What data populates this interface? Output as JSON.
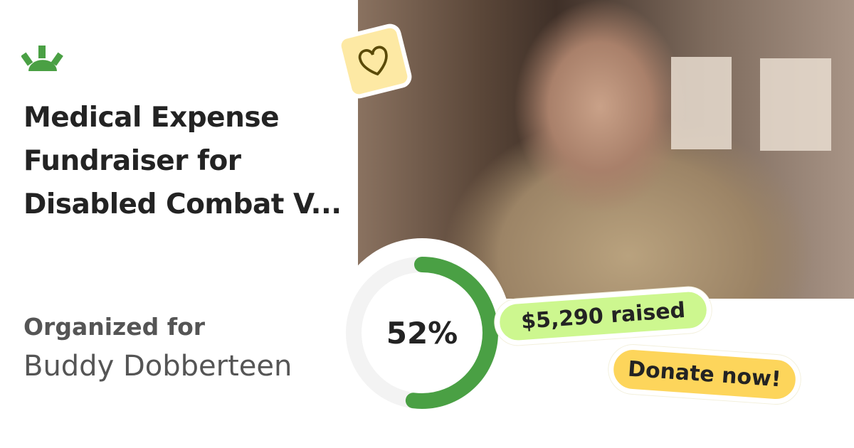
{
  "campaign": {
    "title": "Medical Expense Fundraiser for Disabled Combat V...",
    "organized_label": "Organized for",
    "beneficiary": "Buddy Dobberteen",
    "progress_percent": 52,
    "progress_text": "52%",
    "raised_text": "$5,290 raised",
    "donate_label": "Donate now!"
  },
  "icons": {
    "logo": "gofundme-sun-logo",
    "heart": "heart-icon"
  },
  "colors": {
    "brand_green": "#4aa044",
    "raised_pill": "#cdf78f",
    "donate_pill": "#fdd55b",
    "heart_tile": "#fde9a4"
  }
}
